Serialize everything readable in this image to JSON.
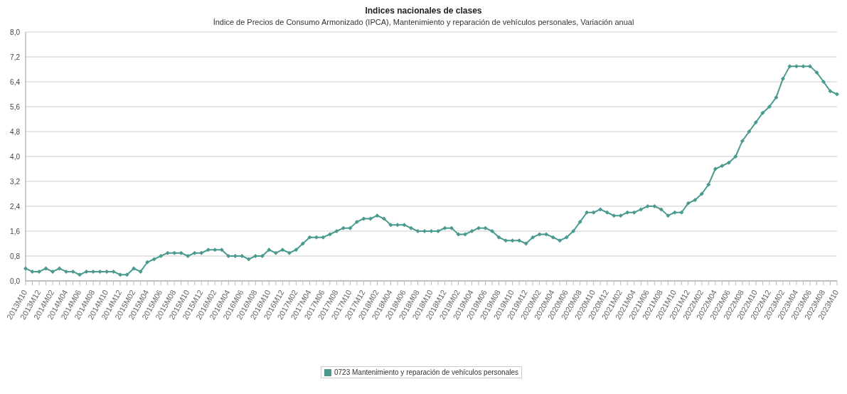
{
  "chart_data": {
    "type": "line",
    "title": "Indices nacionales de clases",
    "subtitle": "Índice de Precios de Consumo Armonizado (IPCA), Mantenimiento y reparación de vehículos personales, Variación anual",
    "categories": [
      "2013M10",
      null,
      "2013M12",
      null,
      "2014M02",
      null,
      "2014M04",
      null,
      "2014M06",
      null,
      "2014M08",
      null,
      "2014M10",
      null,
      "2014M12",
      null,
      "2015M02",
      null,
      "2015M04",
      null,
      "2015M06",
      null,
      "2015M08",
      null,
      "2015M10",
      null,
      "2015M12",
      null,
      "2016M02",
      null,
      "2016M04",
      null,
      "2016M06",
      null,
      "2016M08",
      null,
      "2016M10",
      null,
      "2016M12",
      null,
      "2017M02",
      null,
      "2017M04",
      null,
      "2017M06",
      null,
      "2017M08",
      null,
      "2017M10",
      null,
      "2017M12",
      null,
      "2018M02",
      null,
      "2018M04",
      null,
      "2018M06",
      null,
      "2018M08",
      null,
      "2018M10",
      null,
      "2018M12",
      null,
      "2019M02",
      null,
      "2019M04",
      null,
      "2019M06",
      null,
      "2019M08",
      null,
      "2019M10",
      null,
      "2019M12",
      null,
      "2020M02",
      null,
      "2020M04",
      null,
      "2020M06",
      null,
      "2020M08",
      null,
      "2020M10",
      null,
      "2020M12",
      null,
      "2021M02",
      null,
      "2021M04",
      null,
      "2021M06",
      null,
      "2021M08",
      null,
      "2021M10",
      null,
      "2021M12",
      null,
      "2022M02",
      null,
      "2022M04",
      null,
      "2022M06",
      null,
      "2022M08",
      null,
      "2022M10",
      null,
      "2022M12",
      null,
      "2023M02",
      null,
      "2023M04",
      null,
      "2023M06",
      null,
      "2023M08",
      null,
      "2023M10"
    ],
    "series": [
      {
        "name": "0723 Mantenimiento y reparación de vehículos personales",
        "color": "#4a9a8f",
        "values": [
          0.4,
          0.3,
          0.3,
          0.4,
          0.3,
          0.4,
          0.3,
          0.3,
          0.2,
          0.3,
          0.3,
          0.3,
          0.3,
          0.3,
          0.2,
          0.2,
          0.4,
          0.3,
          0.6,
          0.7,
          0.8,
          0.9,
          0.9,
          0.9,
          0.8,
          0.9,
          0.9,
          1.0,
          1.0,
          1.0,
          0.8,
          0.8,
          0.8,
          0.7,
          0.8,
          0.8,
          1.0,
          0.9,
          1.0,
          0.9,
          1.0,
          1.2,
          1.4,
          1.4,
          1.4,
          1.5,
          1.6,
          1.7,
          1.7,
          1.9,
          2.0,
          2.0,
          2.1,
          2.0,
          1.8,
          1.8,
          1.8,
          1.7,
          1.6,
          1.6,
          1.6,
          1.6,
          1.7,
          1.7,
          1.5,
          1.5,
          1.6,
          1.7,
          1.7,
          1.6,
          1.4,
          1.3,
          1.3,
          1.3,
          1.2,
          1.4,
          1.5,
          1.5,
          1.4,
          1.3,
          1.4,
          1.6,
          1.9,
          2.2,
          2.2,
          2.3,
          2.2,
          2.1,
          2.1,
          2.2,
          2.2,
          2.3,
          2.4,
          2.4,
          2.3,
          2.1,
          2.2,
          2.2,
          2.5,
          2.6,
          2.8,
          3.1,
          3.6,
          3.7,
          3.8,
          4.0,
          4.5,
          4.8,
          5.1,
          5.4,
          5.6,
          5.9,
          6.5,
          6.9,
          6.9,
          6.9,
          6.9,
          6.7,
          6.4,
          6.1,
          6.0
        ]
      }
    ],
    "ylim": [
      0,
      8
    ],
    "yticks": [
      {
        "value": 0,
        "label": "0,0"
      },
      {
        "value": 0.8,
        "label": "0,8"
      },
      {
        "value": 1.6,
        "label": "1,6"
      },
      {
        "value": 2.4,
        "label": "2,4"
      },
      {
        "value": 3.2,
        "label": "3,2"
      },
      {
        "value": 4,
        "label": "4,0"
      },
      {
        "value": 4.8,
        "label": "4,8"
      },
      {
        "value": 5.6,
        "label": "5,6"
      },
      {
        "value": 6.4,
        "label": "6,4"
      },
      {
        "value": 7.2,
        "label": "7,2"
      },
      {
        "value": 8,
        "label": "8,0"
      }
    ],
    "grid": "y",
    "legend": "bottom",
    "marker": "diamond",
    "line_style": "solid"
  }
}
